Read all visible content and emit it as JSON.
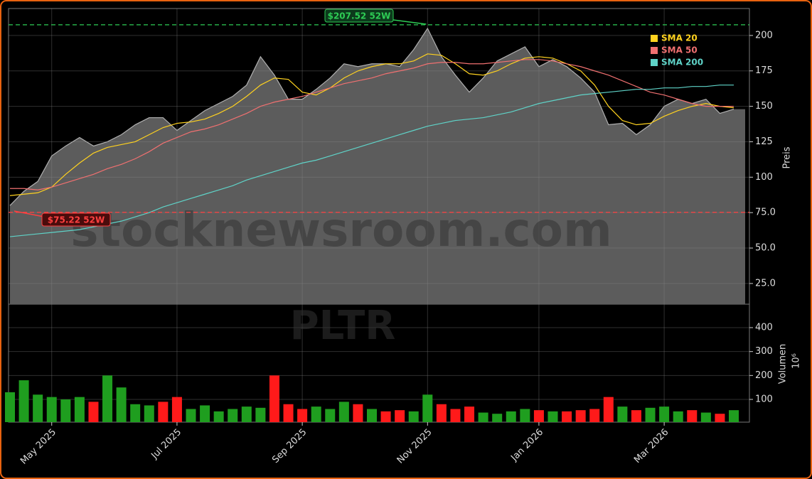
{
  "chart_data": {
    "type": "line",
    "watermark": "stocknewsroom.com",
    "symbol": "PLTR",
    "ylabel": "Preis",
    "y2label": "Volumen",
    "y2unit": "10⁶",
    "categories": [
      null,
      null,
      null,
      "May 2025",
      null,
      null,
      null,
      null,
      null,
      null,
      null,
      null,
      "Jul 2025",
      null,
      null,
      null,
      null,
      null,
      null,
      null,
      null,
      "Sep 2025",
      null,
      null,
      null,
      null,
      null,
      null,
      null,
      null,
      "Nov 2025",
      null,
      null,
      null,
      null,
      null,
      null,
      null,
      "Jan 2026",
      null,
      null,
      null,
      null,
      null,
      null,
      null,
      null,
      "Mar 2026",
      null,
      null,
      null,
      null,
      null
    ],
    "ylim": [
      10.4,
      219
    ],
    "yticks": [
      {
        "value": 25,
        "label": "25.0"
      },
      {
        "value": 50,
        "label": "50.0"
      },
      {
        "value": 75,
        "label": "75.0"
      },
      100,
      125,
      150,
      175,
      200
    ],
    "y2lim": [
      5,
      498
    ],
    "y2ticks": [
      100,
      200,
      300,
      400
    ],
    "grid": true,
    "legend": "upper right",
    "series": [
      {
        "type": "area",
        "color": "#5c5c5c",
        "values": [
          80,
          90,
          97,
          115,
          122,
          128,
          122,
          125,
          130,
          137,
          142,
          142,
          133,
          140,
          147,
          152,
          157,
          165,
          185,
          172,
          155,
          155,
          162,
          170,
          180,
          178,
          180,
          180,
          178,
          190,
          205,
          185,
          172,
          160,
          170,
          182,
          187,
          192,
          178,
          183,
          178,
          170,
          160,
          137,
          138,
          130,
          137,
          150,
          155,
          152,
          155,
          145,
          148
        ]
      },
      {
        "name": "SMA 20",
        "color": "#ffd21f",
        "values": [
          87,
          88,
          89,
          93,
          102,
          110,
          117,
          121,
          123,
          125,
          130,
          135,
          138,
          139,
          141,
          145,
          150,
          157,
          165,
          170,
          169,
          160,
          158,
          163,
          170,
          175,
          178,
          180,
          180,
          182,
          187,
          186,
          180,
          173,
          172,
          175,
          180,
          184,
          185,
          184,
          180,
          175,
          165,
          150,
          140,
          137,
          138,
          143,
          147,
          150,
          152,
          150,
          149
        ]
      },
      {
        "name": "SMA 50",
        "color": "#f07070",
        "values": [
          92,
          92,
          91,
          93,
          96,
          99,
          102,
          106,
          109,
          113,
          118,
          124,
          128,
          132,
          134,
          137,
          141,
          145,
          150,
          153,
          155,
          157,
          160,
          163,
          166,
          168,
          170,
          173,
          175,
          177,
          180,
          181,
          181,
          180,
          180,
          181,
          182,
          183,
          183,
          182,
          180,
          178,
          175,
          172,
          168,
          164,
          160,
          158,
          155,
          152,
          150,
          150,
          150
        ]
      },
      {
        "name": "SMA 200",
        "color": "#5fd3c8",
        "values": [
          58,
          59,
          60,
          61,
          62,
          63,
          65,
          67,
          69,
          72,
          75,
          79,
          82,
          85,
          88,
          91,
          94,
          98,
          101,
          104,
          107,
          110,
          112,
          115,
          118,
          121,
          124,
          127,
          130,
          133,
          136,
          138,
          140,
          141,
          142,
          144,
          146,
          149,
          152,
          154,
          156,
          158,
          159,
          160,
          161,
          162,
          162,
          163,
          163,
          164,
          164,
          165,
          165
        ]
      },
      {
        "type": "bar",
        "axis": "y2",
        "values": [
          130,
          180,
          120,
          110,
          100,
          110,
          90,
          200,
          150,
          80,
          75,
          90,
          110,
          60,
          75,
          50,
          60,
          70,
          65,
          200,
          80,
          60,
          70,
          60,
          90,
          80,
          60,
          50,
          55,
          50,
          120,
          80,
          60,
          70,
          45,
          40,
          50,
          60,
          55,
          50,
          50,
          55,
          60,
          110,
          70,
          55,
          65,
          70,
          50,
          55,
          45,
          40,
          55
        ],
        "colors": [
          "#1f9e1f",
          "#1f9e1f",
          "#1f9e1f",
          "#1f9e1f",
          "#1f9e1f",
          "#1f9e1f",
          "#ff1a1a",
          "#1f9e1f",
          "#1f9e1f",
          "#1f9e1f",
          "#1f9e1f",
          "#ff1a1a",
          "#ff1a1a",
          "#1f9e1f",
          "#1f9e1f",
          "#1f9e1f",
          "#1f9e1f",
          "#1f9e1f",
          "#1f9e1f",
          "#ff1a1a",
          "#ff1a1a",
          "#ff1a1a",
          "#1f9e1f",
          "#1f9e1f",
          "#1f9e1f",
          "#ff1a1a",
          "#1f9e1f",
          "#ff1a1a",
          "#ff1a1a",
          "#1f9e1f",
          "#1f9e1f",
          "#ff1a1a",
          "#ff1a1a",
          "#ff1a1a",
          "#1f9e1f",
          "#1f9e1f",
          "#1f9e1f",
          "#1f9e1f",
          "#ff1a1a",
          "#1f9e1f",
          "#ff1a1a",
          "#ff1a1a",
          "#ff1a1a",
          "#ff1a1a",
          "#1f9e1f",
          "#ff1a1a",
          "#1f9e1f",
          "#1f9e1f",
          "#1f9e1f",
          "#ff1a1a",
          "#1f9e1f",
          "#ff1a1a",
          "#1f9e1f"
        ]
      }
    ],
    "annotations": [
      {
        "text": "$207.52 52W",
        "value": 207.52,
        "color": "#2ecc55"
      },
      {
        "text": "$75.22 52W",
        "value": 75.22,
        "color": "#ff4040"
      }
    ]
  }
}
